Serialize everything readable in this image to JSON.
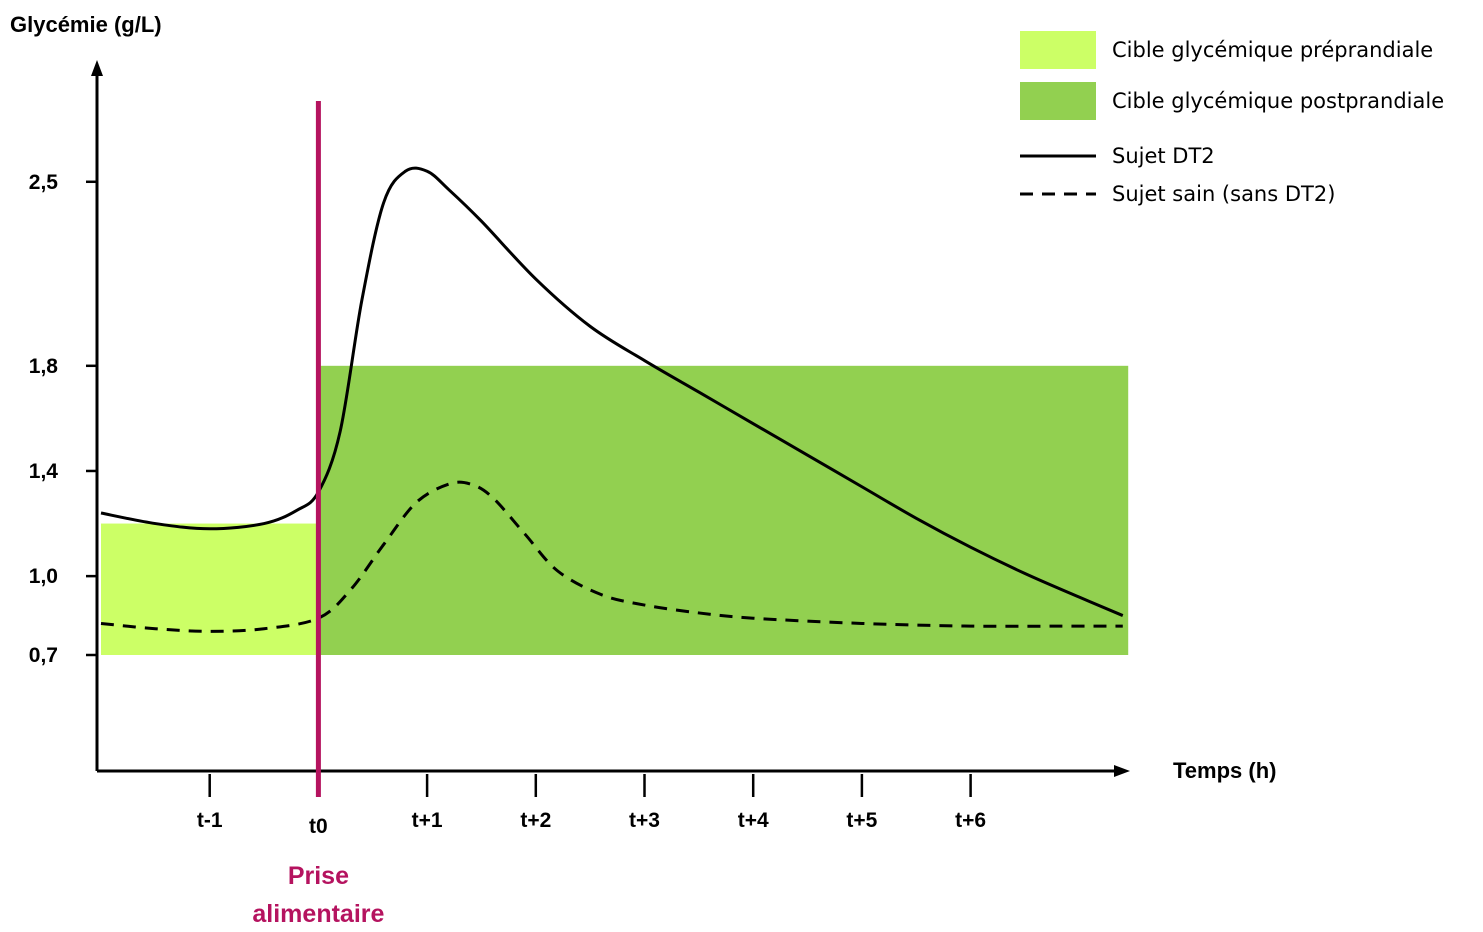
{
  "chart_data": {
    "type": "line",
    "title": "",
    "ylabel": "Glycémie (g/L)",
    "xlabel": "Temps (h)",
    "y_ticks": [
      "0,7",
      "1,0",
      "1,4",
      "1,8",
      "2,5"
    ],
    "y_tick_values": [
      0.7,
      1.0,
      1.4,
      1.8,
      2.5
    ],
    "x_ticks": [
      "t-1",
      "t0",
      "t+1",
      "t+2",
      "t+3",
      "t+4",
      "t+5",
      "t+6"
    ],
    "x_tick_values": [
      -1,
      0,
      1,
      2,
      3,
      4,
      5,
      6
    ],
    "xlim": [
      -2,
      7.5
    ],
    "ylim": [
      0.1,
      3.6
    ],
    "event": {
      "x": 0,
      "label_lines": [
        "Prise",
        "alimentaire"
      ],
      "color": "#b5135f"
    },
    "bands": [
      {
        "name": "Cible glycémique préprandiale",
        "x": [
          -2,
          0
        ],
        "y": [
          0.7,
          1.2
        ],
        "color": "#ccff66"
      },
      {
        "name": "Cible glycémique postprandiale",
        "x": [
          0,
          7.45
        ],
        "y": [
          0.7,
          1.8
        ],
        "color": "#92d050"
      }
    ],
    "series": [
      {
        "name": "Sujet DT2",
        "style": "solid",
        "x": [
          -2,
          -1.5,
          -1,
          -0.5,
          -0.2,
          0,
          0.2,
          0.4,
          0.6,
          0.8,
          1.0,
          1.2,
          1.5,
          2.0,
          2.5,
          3.0,
          3.5,
          4.0,
          4.5,
          5.0,
          5.5,
          6.0,
          6.5,
          7.0,
          7.4
        ],
        "y": [
          1.24,
          1.2,
          1.18,
          1.2,
          1.25,
          1.32,
          1.55,
          2.05,
          2.42,
          2.54,
          2.54,
          2.47,
          2.35,
          2.13,
          1.95,
          1.82,
          1.7,
          1.58,
          1.46,
          1.34,
          1.22,
          1.11,
          1.01,
          0.92,
          0.85
        ]
      },
      {
        "name": "Sujet sain (sans DT2)",
        "style": "dashed",
        "x": [
          -2,
          -1.5,
          -1,
          -0.5,
          0,
          0.3,
          0.6,
          0.9,
          1.2,
          1.4,
          1.6,
          1.9,
          2.2,
          2.6,
          3.0,
          3.5,
          4.0,
          5.0,
          6.0,
          7.0,
          7.4
        ],
        "y": [
          0.82,
          0.8,
          0.79,
          0.8,
          0.84,
          0.95,
          1.12,
          1.28,
          1.35,
          1.35,
          1.3,
          1.16,
          1.02,
          0.93,
          0.89,
          0.86,
          0.84,
          0.82,
          0.81,
          0.81,
          0.81
        ]
      }
    ],
    "legend": [
      {
        "label": "Cible glycémique préprandiale",
        "kind": "patch",
        "color": "#ccff66"
      },
      {
        "label": "Cible glycémique postprandiale",
        "kind": "patch",
        "color": "#92d050"
      },
      {
        "label": "Sujet DT2",
        "kind": "line",
        "style": "solid"
      },
      {
        "label": "Sujet sain (sans DT2)",
        "kind": "line",
        "style": "dashed"
      }
    ],
    "legend_position": "top-right",
    "grid": false
  }
}
